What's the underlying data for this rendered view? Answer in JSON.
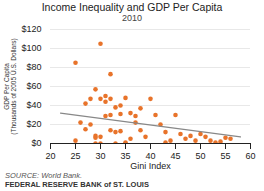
{
  "chart_data": {
    "type": "scatter",
    "title": "Income Inequality and GDP Per Capita",
    "subtitle": "2010",
    "xlabel": "Gini Index",
    "ylabel": "GDP Per Capita\n(Thousands of 2005 U.S. Dollars)",
    "source": "SOURCE: World Bank.",
    "footer": "FEDERAL RESERVE BANK of ST. LOUIS",
    "xlim": [
      20,
      60
    ],
    "ylim": [
      0,
      120
    ],
    "xticks": [
      20,
      25,
      30,
      35,
      40,
      45,
      50,
      55,
      60
    ],
    "yticks": [
      {
        "value": 0,
        "label": "$0"
      },
      {
        "value": 20,
        "label": "$20"
      },
      {
        "value": 40,
        "label": "$40"
      },
      {
        "value": 60,
        "label": "$60"
      },
      {
        "value": 80,
        "label": "$80"
      },
      {
        "value": 100,
        "label": "$100"
      },
      {
        "value": 120,
        "label": "$120"
      }
    ],
    "grid": "y",
    "series": [
      {
        "type": "scatter",
        "color": "#E8732A",
        "x": [
          25,
          25,
          26,
          27,
          27,
          28,
          28,
          29,
          29,
          29,
          29,
          30,
          30,
          30,
          30,
          31,
          31,
          31,
          32,
          32,
          32,
          32,
          33,
          33,
          33,
          34,
          34,
          34,
          35,
          35,
          35,
          36,
          36,
          37,
          37,
          38,
          38,
          39,
          40,
          41,
          42,
          43,
          43,
          44,
          45,
          46,
          47,
          48,
          49,
          50,
          51,
          52,
          53,
          54,
          55,
          56
        ],
        "values": [
          85,
          3,
          22,
          42,
          15,
          47,
          20,
          8,
          6,
          0,
          57,
          7,
          0,
          47,
          105,
          50,
          44,
          29,
          47,
          30,
          14,
          73,
          38,
          12,
          0,
          40,
          31,
          13,
          48,
          1,
          0,
          32,
          5,
          29,
          22,
          37,
          14,
          7,
          47,
          30,
          20,
          1,
          12,
          3,
          30,
          10,
          5,
          8,
          3,
          10,
          7,
          3,
          1,
          2,
          6,
          5
        ]
      },
      {
        "type": "line",
        "color": "#888888",
        "x": [
          22,
          58
        ],
        "values": [
          32,
          7
        ]
      }
    ]
  }
}
